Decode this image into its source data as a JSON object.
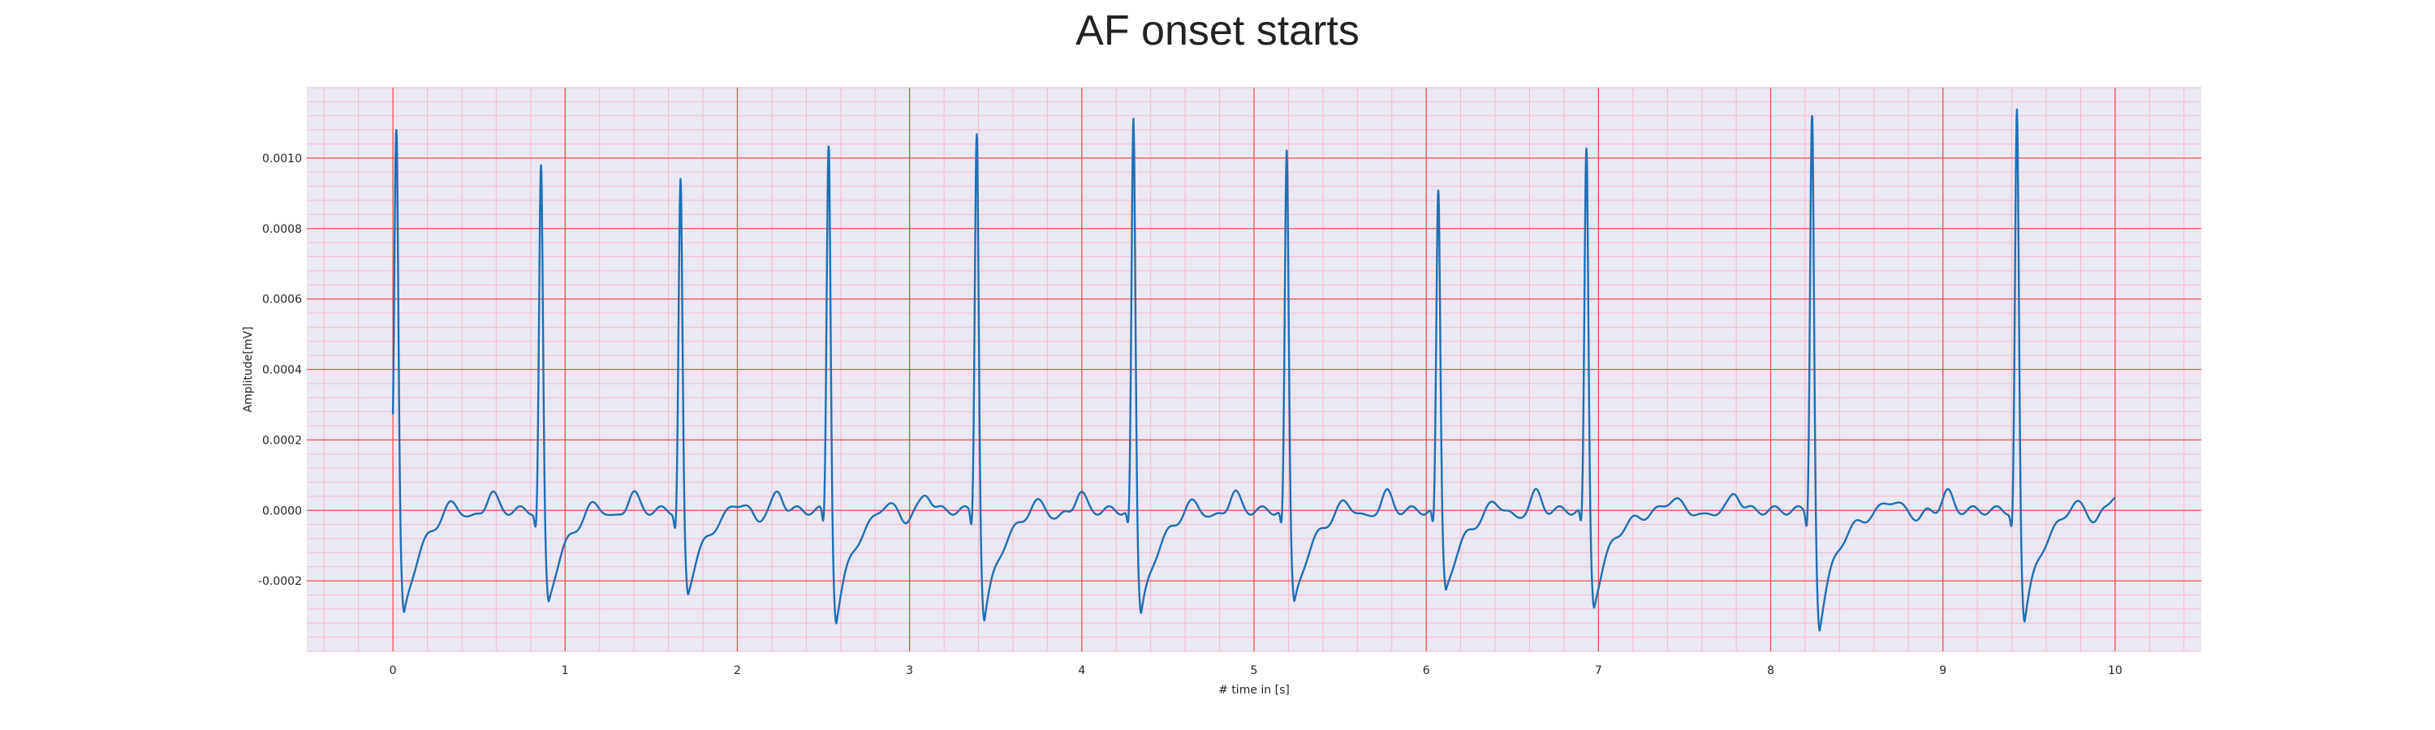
{
  "chart_data": {
    "type": "line",
    "title": "AF onset starts",
    "xlabel": "# time in [s]",
    "ylabel": "Amplitude[mV]",
    "xlim": [
      -0.5,
      10.5
    ],
    "ylim": [
      -0.0004,
      0.0012
    ],
    "xticks": [
      0,
      1,
      2,
      3,
      4,
      5,
      6,
      7,
      8,
      9,
      10
    ],
    "xtick_labels": [
      "0",
      "1",
      "2",
      "3",
      "4",
      "5",
      "6",
      "7",
      "8",
      "9",
      "10"
    ],
    "yticks": [
      -0.0002,
      0.0,
      0.0002,
      0.0004,
      0.0006,
      0.0008,
      0.001
    ],
    "ytick_labels": [
      "-0.0002",
      "0.0000",
      "0.0002",
      "0.0004",
      "0.0006",
      "0.0008",
      "0.0010"
    ],
    "grid": {
      "major": true,
      "minor": true,
      "major_color": "#f05050",
      "minor_color": "#f6b8c8"
    },
    "background": "#eae8f2",
    "line_color": "#1f6fb4",
    "series": [
      {
        "beats": [
          {
            "t": 0.02,
            "peak": 0.00108,
            "trough": -0.0003
          },
          {
            "t": 0.86,
            "peak": 0.00097,
            "trough": -0.00026
          },
          {
            "t": 1.67,
            "peak": 0.00093,
            "trough": -0.00023
          },
          {
            "t": 2.53,
            "peak": 0.00104,
            "trough": -0.00031
          },
          {
            "t": 3.39,
            "peak": 0.00108,
            "trough": -0.00031
          },
          {
            "t": 4.3,
            "peak": 0.0011,
            "trough": -0.0003
          },
          {
            "t": 5.19,
            "peak": 0.00101,
            "trough": -0.00027
          },
          {
            "t": 6.07,
            "peak": 0.0009,
            "trough": -0.00023
          },
          {
            "t": 6.93,
            "peak": 0.00102,
            "trough": -0.00027
          },
          {
            "t": 8.24,
            "peak": 0.00113,
            "trough": -0.00033
          },
          {
            "t": 9.43,
            "peak": 0.00113,
            "trough": -0.00031
          }
        ],
        "start_value": 0.00017,
        "x_end": 10.0
      }
    ]
  }
}
